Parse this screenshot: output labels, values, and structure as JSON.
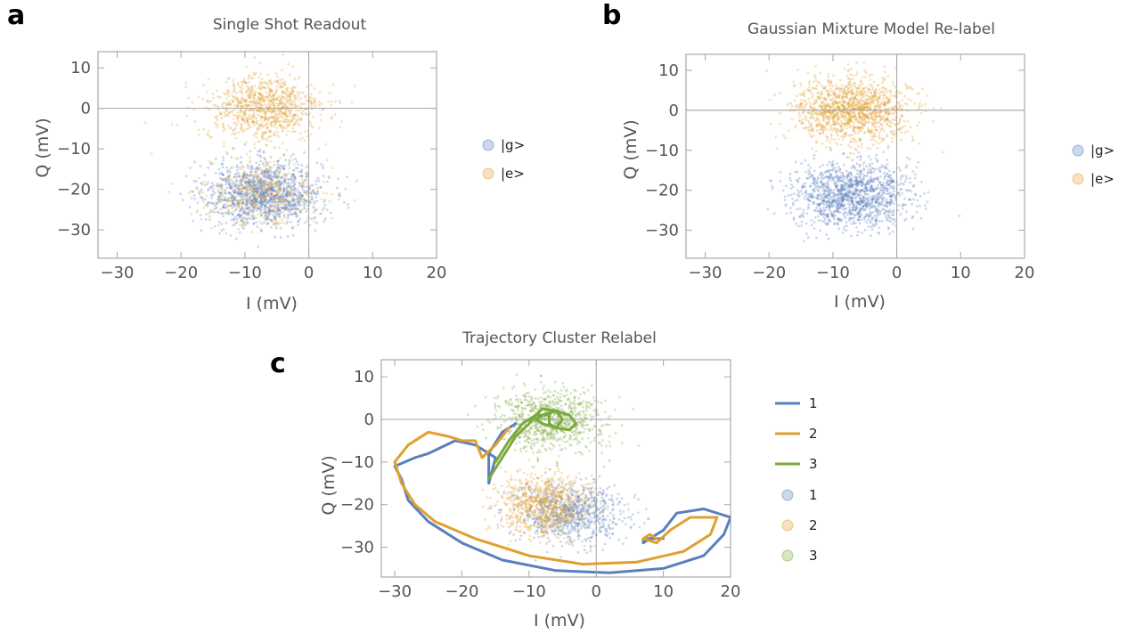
{
  "figure": {
    "panel_labels": [
      "a",
      "b",
      "c"
    ],
    "colors": {
      "blue": "#5b7fbd",
      "orange": "#e0a030",
      "green": "#79aa3d",
      "frame": "#a8a8a8",
      "text": "#555555"
    }
  },
  "chart_data": [
    {
      "type": "scatter",
      "panel": "a",
      "title": "Single Shot Readout",
      "xlabel": "I (mV)",
      "ylabel": "Q (mV)",
      "xlim": [
        -33,
        20
      ],
      "ylim": [
        -37,
        14
      ],
      "xticks": [
        -30,
        -20,
        -10,
        0,
        10,
        20
      ],
      "yticks": [
        10,
        0,
        -10,
        -20,
        -30
      ],
      "legend": {
        "placement": "right",
        "entries": [
          "|g>",
          "|e>"
        ]
      },
      "point_series": [
        {
          "name": "|g>",
          "color": "#5b7fbd",
          "clusters": [
            {
              "cx": -7,
              "cy": -21,
              "sx": 4.5,
              "sy": 4.0,
              "weight": 1.0
            }
          ]
        },
        {
          "name": "|e>",
          "color": "#e0a030",
          "clusters": [
            {
              "cx": -7,
              "cy": 0,
              "sx": 4.5,
              "sy": 4.0,
              "weight": 0.68
            },
            {
              "cx": -7,
              "cy": -21,
              "sx": 4.5,
              "sy": 4.0,
              "weight": 0.32
            }
          ]
        }
      ]
    },
    {
      "type": "scatter",
      "panel": "b",
      "title": "Gaussian Mixture Model Re-label",
      "xlabel": "I (mV)",
      "ylabel": "Q (mV)",
      "xlim": [
        -33,
        20
      ],
      "ylim": [
        -37,
        14
      ],
      "xticks": [
        -30,
        -20,
        -10,
        0,
        10,
        20
      ],
      "yticks": [
        10,
        0,
        -10,
        -20,
        -30
      ],
      "legend": {
        "placement": "right",
        "entries": [
          "|g>",
          "|e>"
        ]
      },
      "point_series": [
        {
          "name": "|g>",
          "color": "#5b7fbd",
          "clusters": [
            {
              "cx": -7,
              "cy": -21,
              "sx": 4.5,
              "sy": 4.0,
              "weight": 1.0
            }
          ]
        },
        {
          "name": "|e>",
          "color": "#e0a030",
          "clusters": [
            {
              "cx": -7,
              "cy": 0,
              "sx": 4.5,
              "sy": 4.0,
              "weight": 1.0
            }
          ]
        }
      ]
    },
    {
      "type": "scatter",
      "panel": "c",
      "title": "Trajectory Cluster Relabel",
      "xlabel": "I (mV)",
      "ylabel": "Q (mV)",
      "xlim": [
        -32,
        20
      ],
      "ylim": [
        -37,
        14
      ],
      "xticks": [
        -30,
        -20,
        -10,
        0,
        10,
        20
      ],
      "yticks": [
        10,
        0,
        -10,
        -20,
        -30
      ],
      "legend": {
        "placement": "right",
        "line_entries": [
          "1",
          "2",
          "3"
        ],
        "point_entries": [
          "1",
          "2",
          "3"
        ]
      },
      "point_series": [
        {
          "name": "1",
          "color": "#5b7fbd",
          "clusters": [
            {
              "cx": -4,
              "cy": -22,
              "sx": 4.0,
              "sy": 3.5,
              "weight": 1.0
            }
          ]
        },
        {
          "name": "2",
          "color": "#e0a030",
          "clusters": [
            {
              "cx": -8,
              "cy": -20,
              "sx": 3.5,
              "sy": 3.5,
              "weight": 1.0
            }
          ]
        },
        {
          "name": "3",
          "color": "#79aa3d",
          "clusters": [
            {
              "cx": -7,
              "cy": 0,
              "sx": 4.0,
              "sy": 3.5,
              "weight": 1.0
            }
          ]
        }
      ],
      "line_series": [
        {
          "name": "1",
          "color": "#5b7fbd",
          "points": [
            [
              -12,
              -1
            ],
            [
              -14,
              -3
            ],
            [
              -16,
              -8
            ],
            [
              -16,
              -15
            ],
            [
              -15,
              -9
            ],
            [
              -18,
              -6
            ],
            [
              -21,
              -5
            ],
            [
              -25,
              -8
            ],
            [
              -27,
              -9
            ],
            [
              -30,
              -11
            ],
            [
              -29,
              -14
            ],
            [
              -28,
              -19
            ],
            [
              -25,
              -24
            ],
            [
              -20,
              -29
            ],
            [
              -14,
              -33
            ],
            [
              -6,
              -35.5
            ],
            [
              2,
              -36
            ],
            [
              10,
              -35
            ],
            [
              16,
              -32
            ],
            [
              19,
              -27
            ],
            [
              20,
              -23
            ],
            [
              16,
              -21
            ],
            [
              12,
              -22
            ],
            [
              10,
              -26
            ],
            [
              8,
              -28
            ],
            [
              7,
              -29
            ],
            [
              7,
              -28
            ],
            [
              9,
              -28
            ],
            [
              10,
              -28
            ]
          ]
        },
        {
          "name": "2",
          "color": "#e0a030",
          "points": [
            [
              -13,
              -2
            ],
            [
              -15,
              -6
            ],
            [
              -17,
              -9
            ],
            [
              -18,
              -5
            ],
            [
              -20,
              -5
            ],
            [
              -22,
              -4
            ],
            [
              -25,
              -3
            ],
            [
              -28,
              -6
            ],
            [
              -30,
              -10
            ],
            [
              -29,
              -15
            ],
            [
              -27,
              -20
            ],
            [
              -24,
              -24
            ],
            [
              -18,
              -28
            ],
            [
              -10,
              -32
            ],
            [
              -2,
              -34
            ],
            [
              6,
              -33.5
            ],
            [
              13,
              -31
            ],
            [
              17,
              -27
            ],
            [
              18,
              -23
            ],
            [
              14,
              -23
            ],
            [
              11,
              -26
            ],
            [
              9,
              -29
            ],
            [
              7,
              -28
            ],
            [
              8,
              -27
            ],
            [
              9,
              -28
            ]
          ]
        },
        {
          "name": "3",
          "color": "#79aa3d",
          "points": [
            [
              -16,
              -14
            ],
            [
              -14,
              -9
            ],
            [
              -12,
              -4
            ],
            [
              -10,
              -1
            ],
            [
              -9,
              1
            ],
            [
              -8,
              2.5
            ],
            [
              -6,
              2
            ],
            [
              -5,
              0
            ],
            [
              -6,
              -2
            ],
            [
              -8,
              -1
            ],
            [
              -9,
              0
            ],
            [
              -8,
              1
            ],
            [
              -6,
              2
            ],
            [
              -4,
              1
            ],
            [
              -3,
              -1
            ],
            [
              -4,
              -2.5
            ],
            [
              -6,
              -2
            ],
            [
              -7,
              -1
            ],
            [
              -7,
              1
            ],
            [
              -9,
              1
            ],
            [
              -11,
              -1
            ],
            [
              -13,
              -5
            ],
            [
              -15,
              -10
            ]
          ]
        }
      ]
    }
  ]
}
